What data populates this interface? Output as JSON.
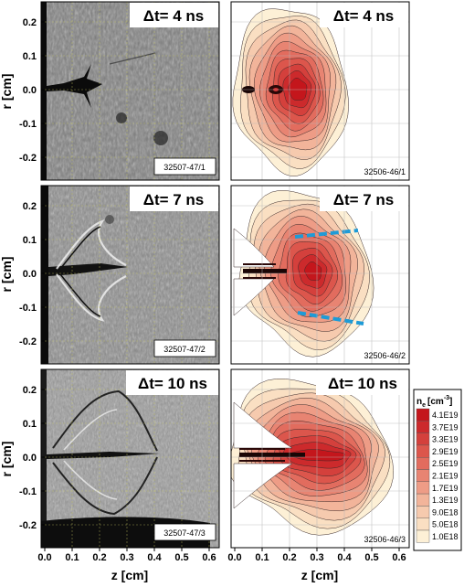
{
  "figure": {
    "rows": [
      {
        "time_label": "Δt= 4 ns",
        "left_shot": "32507-47/1",
        "right_shot": "32506-46/1"
      },
      {
        "time_label": "Δt= 7 ns",
        "left_shot": "32507-47/2",
        "right_shot": "32506-46/2"
      },
      {
        "time_label": "Δt= 10 ns",
        "left_shot": "32507-47/3",
        "right_shot": "32506-46/3"
      }
    ],
    "y_axis": {
      "label": "r [cm]",
      "ticks": [
        "0.2",
        "0.1",
        "0.0",
        "-0.1",
        "-0.2"
      ]
    },
    "x_axis": {
      "label": "z [cm]",
      "ticks": [
        "0.0",
        "0.1",
        "0.2",
        "0.3",
        "0.4",
        "0.5",
        "0.6"
      ]
    },
    "colorbar": {
      "title": "n",
      "title_sub": "e",
      "title_unit": "[cm",
      "title_exp": "-3",
      "levels": [
        "4.1E19",
        "3.7E19",
        "3.3E19",
        "2.9E19",
        "2.5E19",
        "2.1E19",
        "1.7E19",
        "1.3E19",
        "9.0E18",
        "5.0E18",
        "1.0E18"
      ],
      "colors": [
        "#c4161c",
        "#cc2a2c",
        "#d4403c",
        "#dc564c",
        "#e26c5e",
        "#e88472",
        "#ee9c86",
        "#f2b49a",
        "#f6caae",
        "#fadfc2",
        "#fdf0d6"
      ]
    },
    "contour_colors": [
      "#fdf0d6",
      "#fadfc2",
      "#f6caae",
      "#f2b49a",
      "#ee9c86",
      "#e88472",
      "#e26c5e",
      "#dc564c",
      "#d4403c",
      "#cc2a2c",
      "#c4161c"
    ],
    "annotation_color": "#1e9bd7"
  }
}
